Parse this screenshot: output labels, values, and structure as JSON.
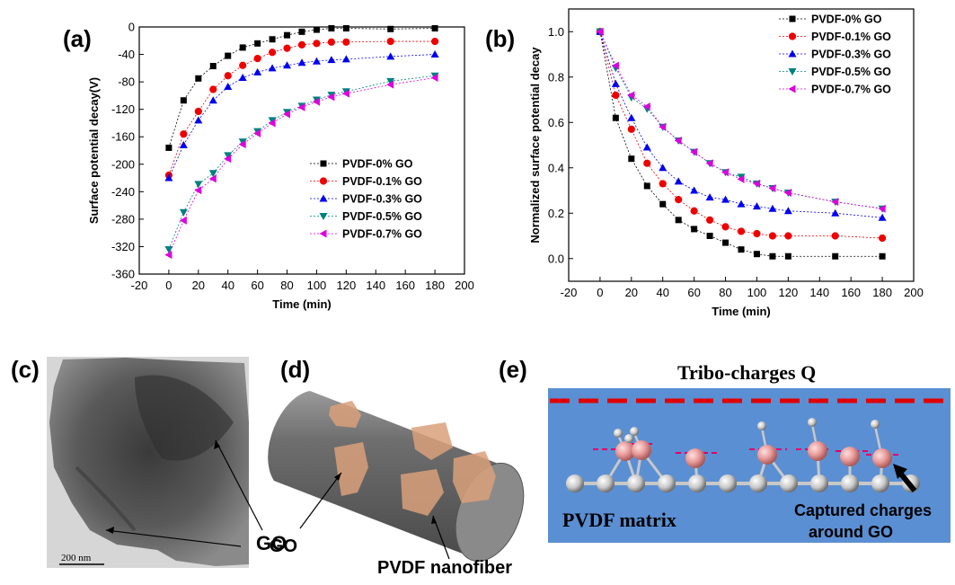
{
  "panel_labels": {
    "a": "(a)",
    "b": "(b)",
    "c": "(c)",
    "d": "(d)",
    "e": "(e)"
  },
  "series_colors": [
    "#000000",
    "#ee0000",
    "#0000ee",
    "#008080",
    "#dd00dd"
  ],
  "series_markers": [
    "square",
    "circle",
    "triangle-up",
    "triangle-down",
    "triangle-left"
  ],
  "chart_data": [
    {
      "type": "line",
      "xlabel": "Time (min)",
      "ylabel": "Surface potential decay(V)",
      "xlim": [
        -20,
        200
      ],
      "ylim": [
        -360,
        0
      ],
      "xticks": [
        -20,
        0,
        20,
        40,
        60,
        80,
        100,
        120,
        140,
        160,
        180,
        200
      ],
      "yticks": [
        0,
        -40,
        -80,
        -120,
        -160,
        -200,
        -240,
        -280,
        -320,
        -360
      ],
      "legend_position": "bottom-right",
      "x": [
        0,
        10,
        20,
        30,
        40,
        50,
        60,
        70,
        80,
        90,
        100,
        110,
        120,
        150,
        180
      ],
      "series": [
        {
          "name": "PVDF-0% GO",
          "values": [
            -176,
            -107,
            -75,
            -57,
            -42,
            -30,
            -24,
            -18,
            -12,
            -7,
            -4,
            -2,
            -2,
            -3,
            -2
          ]
        },
        {
          "name": "PVDF-0.1% GO",
          "values": [
            -216,
            -156,
            -123,
            -91,
            -71,
            -56,
            -46,
            -37,
            -31,
            -26,
            -24,
            -22,
            -22,
            -21,
            -21
          ]
        },
        {
          "name": "PVDF-0.3% GO",
          "values": [
            -220,
            -172,
            -136,
            -107,
            -87,
            -74,
            -66,
            -60,
            -56,
            -52,
            -50,
            -48,
            -47,
            -43,
            -40
          ]
        },
        {
          "name": "PVDF-0.5% GO",
          "values": [
            -324,
            -270,
            -229,
            -213,
            -187,
            -167,
            -152,
            -136,
            -124,
            -115,
            -106,
            -99,
            -94,
            -79,
            -71
          ]
        },
        {
          "name": "PVDF-0.7% GO",
          "values": [
            -332,
            -282,
            -238,
            -221,
            -192,
            -171,
            -155,
            -140,
            -127,
            -117,
            -109,
            -102,
            -97,
            -84,
            -74
          ]
        }
      ]
    },
    {
      "type": "line",
      "xlabel": "Time (min)",
      "ylabel": "Normalized surface potential decay",
      "xlim": [
        -20,
        200
      ],
      "ylim": [
        -0.1,
        1.1
      ],
      "xticks": [
        -20,
        0,
        20,
        40,
        60,
        80,
        100,
        120,
        140,
        160,
        180,
        200
      ],
      "yticks": [
        0.0,
        0.2,
        0.4,
        0.6,
        0.8,
        1.0
      ],
      "legend_position": "top-right",
      "x": [
        0,
        10,
        20,
        30,
        40,
        50,
        60,
        70,
        80,
        90,
        100,
        110,
        120,
        150,
        180
      ],
      "series": [
        {
          "name": "PVDF-0% GO",
          "values": [
            1.0,
            0.62,
            0.44,
            0.32,
            0.24,
            0.17,
            0.13,
            0.1,
            0.07,
            0.04,
            0.02,
            0.01,
            0.01,
            0.01,
            0.01
          ]
        },
        {
          "name": "PVDF-0.1% GO",
          "values": [
            1.0,
            0.72,
            0.57,
            0.42,
            0.33,
            0.26,
            0.21,
            0.17,
            0.14,
            0.12,
            0.11,
            0.1,
            0.1,
            0.1,
            0.09
          ]
        },
        {
          "name": "PVDF-0.3% GO",
          "values": [
            1.0,
            0.77,
            0.62,
            0.49,
            0.4,
            0.34,
            0.3,
            0.27,
            0.26,
            0.24,
            0.23,
            0.22,
            0.21,
            0.2,
            0.18
          ]
        },
        {
          "name": "PVDF-0.5% GO",
          "values": [
            1.0,
            0.84,
            0.71,
            0.66,
            0.58,
            0.52,
            0.47,
            0.42,
            0.38,
            0.36,
            0.33,
            0.31,
            0.29,
            0.25,
            0.22
          ]
        },
        {
          "name": "PVDF-0.7% GO",
          "values": [
            1.0,
            0.85,
            0.72,
            0.67,
            0.58,
            0.52,
            0.47,
            0.42,
            0.38,
            0.35,
            0.33,
            0.31,
            0.29,
            0.25,
            0.22
          ]
        }
      ]
    }
  ],
  "panel_c": {
    "scale_bar": "200 nm",
    "label": "GO"
  },
  "panel_d": {
    "go_label": "GO",
    "fiber_label": "PVDF nanofiber"
  },
  "panel_e": {
    "title": "Tribo-charges Q",
    "matrix_label": "PVDF matrix",
    "captured_line1": "Captured charges",
    "captured_line2": "around GO"
  }
}
